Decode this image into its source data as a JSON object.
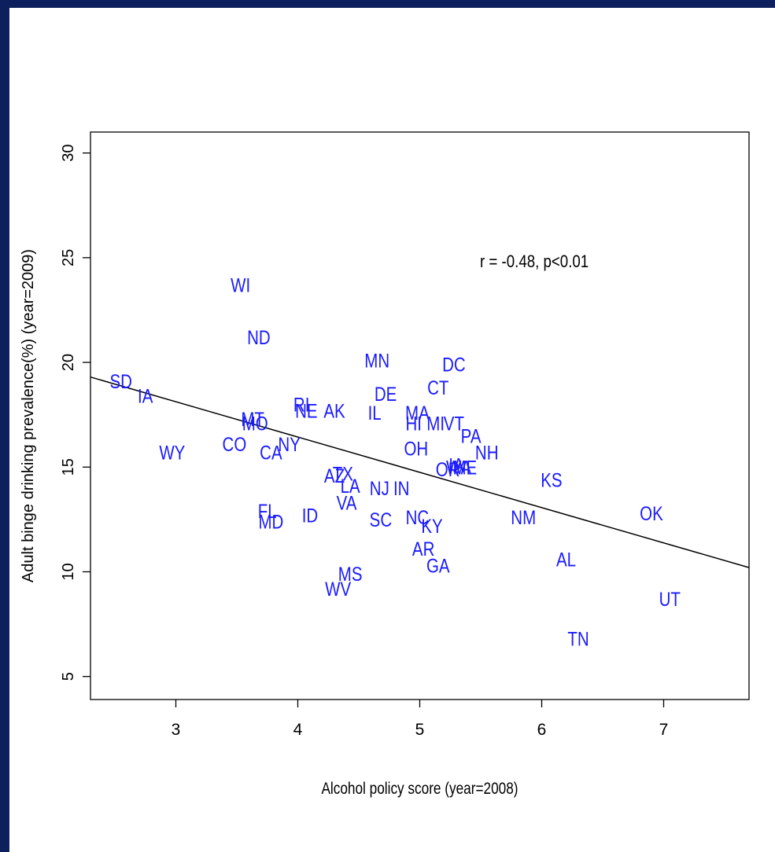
{
  "chart_data": {
    "type": "scatter",
    "xlabel": "Alcohol policy score (year=2008)",
    "ylabel": "Adult binge drinking prevalence(%) (year=2009)",
    "xlim": [
      2.3,
      7.7
    ],
    "ylim": [
      3.9,
      31.0
    ],
    "xticks": [
      3,
      4,
      5,
      6,
      7
    ],
    "yticks": [
      5,
      10,
      15,
      20,
      25,
      30
    ],
    "annotation": "r = -0.48, p<0.01",
    "point_color": "#1a1aff",
    "regression_line": {
      "x": [
        2.3,
        7.7
      ],
      "y": [
        19.3,
        10.2
      ]
    },
    "points": [
      {
        "label": "SD",
        "x": 2.55,
        "y": 19.1
      },
      {
        "label": "IA",
        "x": 2.75,
        "y": 18.4
      },
      {
        "label": "WY",
        "x": 2.97,
        "y": 15.7
      },
      {
        "label": "WI",
        "x": 3.53,
        "y": 23.7
      },
      {
        "label": "ND",
        "x": 3.68,
        "y": 21.2
      },
      {
        "label": "MT",
        "x": 3.63,
        "y": 17.3
      },
      {
        "label": "MO",
        "x": 3.65,
        "y": 17.1
      },
      {
        "label": "CO",
        "x": 3.48,
        "y": 16.1
      },
      {
        "label": "CA",
        "x": 3.78,
        "y": 15.7
      },
      {
        "label": "NY",
        "x": 3.93,
        "y": 16.1
      },
      {
        "label": "RI",
        "x": 4.03,
        "y": 18.0
      },
      {
        "label": "NE",
        "x": 4.07,
        "y": 17.7
      },
      {
        "label": "AK",
        "x": 4.3,
        "y": 17.7
      },
      {
        "label": "FL",
        "x": 3.75,
        "y": 12.9
      },
      {
        "label": "MD",
        "x": 3.78,
        "y": 12.4
      },
      {
        "label": "ID",
        "x": 4.1,
        "y": 12.7
      },
      {
        "label": "AZ",
        "x": 4.3,
        "y": 14.6
      },
      {
        "label": "TX",
        "x": 4.37,
        "y": 14.7
      },
      {
        "label": "LA",
        "x": 4.43,
        "y": 14.1
      },
      {
        "label": "VA",
        "x": 4.4,
        "y": 13.3
      },
      {
        "label": "MS",
        "x": 4.43,
        "y": 9.9
      },
      {
        "label": "WV",
        "x": 4.33,
        "y": 9.2
      },
      {
        "label": "MN",
        "x": 4.65,
        "y": 20.1
      },
      {
        "label": "DE",
        "x": 4.72,
        "y": 18.5
      },
      {
        "label": "IL",
        "x": 4.63,
        "y": 17.6
      },
      {
        "label": "NJ",
        "x": 4.67,
        "y": 14.0
      },
      {
        "label": "IN",
        "x": 4.85,
        "y": 14.0
      },
      {
        "label": "SC",
        "x": 4.68,
        "y": 12.5
      },
      {
        "label": "MA",
        "x": 4.98,
        "y": 17.6
      },
      {
        "label": "HI",
        "x": 4.95,
        "y": 17.1
      },
      {
        "label": "MI",
        "x": 5.13,
        "y": 17.1
      },
      {
        "label": "VT",
        "x": 5.28,
        "y": 17.1
      },
      {
        "label": "OH",
        "x": 4.97,
        "y": 15.9
      },
      {
        "label": "DC",
        "x": 5.28,
        "y": 19.9
      },
      {
        "label": "CT",
        "x": 5.15,
        "y": 18.8
      },
      {
        "label": "PA",
        "x": 5.42,
        "y": 16.5
      },
      {
        "label": "NH",
        "x": 5.55,
        "y": 15.7
      },
      {
        "label": "OR",
        "x": 5.23,
        "y": 14.9
      },
      {
        "label": "IA",
        "x": 5.3,
        "y": 15.1
      },
      {
        "label": "WA",
        "x": 5.32,
        "y": 15.0
      },
      {
        "label": "ME",
        "x": 5.37,
        "y": 15.0
      },
      {
        "label": "NC",
        "x": 4.98,
        "y": 12.6
      },
      {
        "label": "KY",
        "x": 5.1,
        "y": 12.2
      },
      {
        "label": "AR",
        "x": 5.03,
        "y": 11.1
      },
      {
        "label": "GA",
        "x": 5.15,
        "y": 10.3
      },
      {
        "label": "NM",
        "x": 5.85,
        "y": 12.6
      },
      {
        "label": "KS",
        "x": 6.08,
        "y": 14.4
      },
      {
        "label": "AL",
        "x": 6.2,
        "y": 10.6
      },
      {
        "label": "TN",
        "x": 6.3,
        "y": 6.8
      },
      {
        "label": "OK",
        "x": 6.9,
        "y": 12.8
      },
      {
        "label": "UT",
        "x": 7.05,
        "y": 8.7
      }
    ]
  }
}
